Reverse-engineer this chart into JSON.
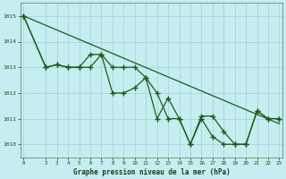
{
  "title": "Graphe pression niveau de la mer (hPa)",
  "background_color": "#c5eef0",
  "grid_color": "#aad4d8",
  "line_color": "#1a5c1a",
  "x_ticks": [
    0,
    2,
    3,
    4,
    5,
    6,
    7,
    8,
    9,
    10,
    11,
    12,
    13,
    14,
    15,
    16,
    17,
    18,
    19,
    20,
    21,
    22,
    23
  ],
  "ylim": [
    1009.5,
    1015.5
  ],
  "xlim": [
    -0.3,
    23.3
  ],
  "series1_x": [
    0,
    2,
    3,
    4,
    5,
    6,
    7,
    8,
    9,
    10,
    11,
    12,
    13,
    14,
    15,
    16,
    17,
    18,
    19,
    20,
    21,
    22,
    23
  ],
  "series1_y": [
    1015.0,
    1013.0,
    1013.1,
    1013.0,
    1013.0,
    1013.0,
    1013.5,
    1013.0,
    1013.0,
    1013.0,
    1012.6,
    1012.0,
    1011.0,
    1011.0,
    1010.0,
    1011.1,
    1011.1,
    1010.5,
    1010.0,
    1010.0,
    1011.3,
    1011.0,
    1011.0
  ],
  "series2_x": [
    0,
    2,
    3,
    4,
    5,
    6,
    7,
    8,
    9,
    10,
    11,
    12,
    13,
    14,
    15,
    16,
    17,
    18,
    19,
    20,
    21,
    22,
    23
  ],
  "series2_y": [
    1015.0,
    1013.0,
    1013.1,
    1013.0,
    1013.0,
    1013.5,
    1013.5,
    1012.0,
    1012.0,
    1012.2,
    1012.6,
    1011.0,
    1011.8,
    1011.0,
    1010.0,
    1011.0,
    1010.3,
    1010.0,
    1010.0,
    1010.0,
    1011.3,
    1011.0,
    1011.0
  ],
  "trend_x": [
    0,
    23
  ],
  "trend_y": [
    1015.0,
    1010.8
  ],
  "yticks": [
    1010,
    1011,
    1012,
    1013,
    1014,
    1015
  ]
}
